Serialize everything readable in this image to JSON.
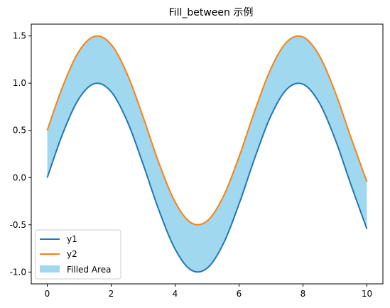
{
  "chart_data": {
    "type": "area",
    "title": "Fill_between 示例",
    "xlabel": "",
    "ylabel": "",
    "xlim": [
      -0.5,
      10.5
    ],
    "ylim": [
      -1.125,
      1.625
    ],
    "xticks": [
      0,
      2,
      4,
      6,
      8,
      10
    ],
    "yticks": [
      -1.0,
      -0.5,
      0.0,
      0.5,
      1.0,
      1.5
    ],
    "xtick_labels": [
      "0",
      "2",
      "4",
      "6",
      "8",
      "10"
    ],
    "ytick_labels": [
      "-1.0",
      "-0.5",
      "0.0",
      "0.5",
      "1.0",
      "1.5"
    ],
    "grid": false,
    "legend_position": "lower-left",
    "x": [
      0.0,
      0.5,
      1.0,
      1.5,
      2.0,
      2.5,
      3.0,
      3.5,
      4.0,
      4.5,
      5.0,
      5.5,
      6.0,
      6.5,
      7.0,
      7.5,
      8.0,
      8.5,
      9.0,
      9.5,
      10.0
    ],
    "series": [
      {
        "name": "y1",
        "color": "#1f77b4",
        "values": [
          0.0,
          0.479,
          0.841,
          0.997,
          0.909,
          0.598,
          0.141,
          -0.351,
          -0.757,
          -0.978,
          -0.959,
          -0.706,
          -0.279,
          0.215,
          0.657,
          0.938,
          0.989,
          0.798,
          0.412,
          -0.075,
          -0.544
        ]
      },
      {
        "name": "y2",
        "color": "#ff7f0e",
        "values": [
          0.5,
          0.979,
          1.341,
          1.497,
          1.409,
          1.098,
          0.641,
          0.149,
          -0.257,
          -0.478,
          -0.459,
          -0.206,
          0.221,
          0.715,
          1.157,
          1.438,
          1.489,
          1.298,
          0.912,
          0.425,
          -0.044
        ]
      }
    ],
    "fill": {
      "name": "Filled Area",
      "between": [
        "y1",
        "y2"
      ],
      "color": "#87ceeb",
      "alpha": 0.8
    }
  }
}
